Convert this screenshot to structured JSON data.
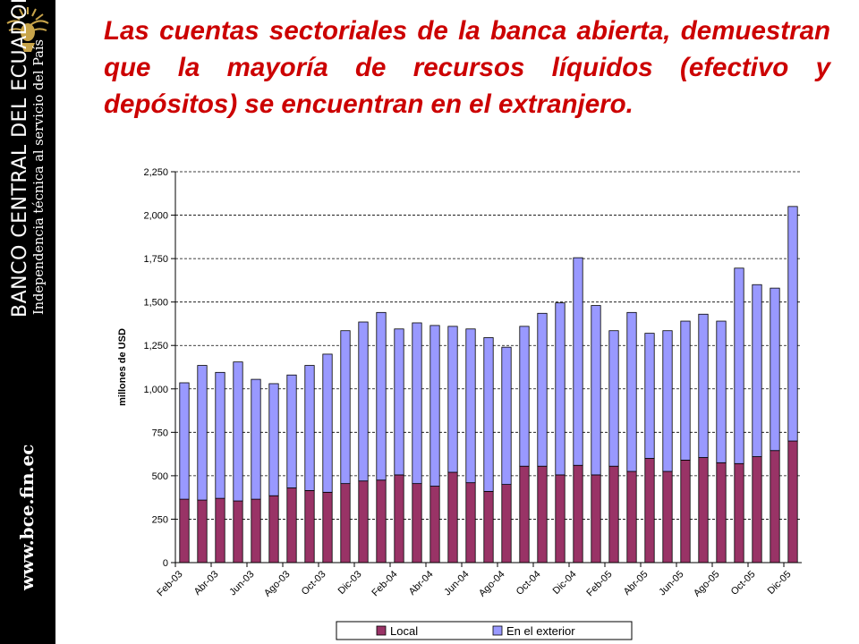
{
  "sidebar": {
    "bank_name": "BANCO CENTRAL DEL ECUADOR",
    "tagline": "Independencia técnica al servicio del País",
    "url": "www.bce.fin.ec",
    "logo_icon": "condor-crest-icon",
    "colors": {
      "background": "#000000",
      "text": "#ffffff",
      "logo": "#c8a44a"
    }
  },
  "headline": "Las cuentas sectoriales de la banca abierta, demuestran que la mayoría de recursos líquidos (efectivo y depósitos) se encuentran en el extranjero.",
  "colors": {
    "headline": "#cc0000",
    "local": "#993366",
    "exterior": "#9999ff",
    "plot_bg": "#ffffff"
  },
  "chart_data": {
    "type": "bar",
    "stacked": true,
    "ylabel": "millones de USD",
    "xlabel": "",
    "ylim": [
      0,
      2250
    ],
    "yticks": [
      0,
      250,
      500,
      750,
      1000,
      1250,
      1500,
      1750,
      2000,
      2250
    ],
    "ytick_labels": [
      "0",
      "250",
      "500",
      "750",
      "1,000",
      "1,250",
      "1,500",
      "1,750",
      "2,000",
      "2,250"
    ],
    "grid": "horizontal dashed",
    "legend_position": "bottom",
    "categories": [
      "Feb-03",
      "Mar-03",
      "Abr-03",
      "May-03",
      "Jun-03",
      "Jul-03",
      "Ago-03",
      "Sep-03",
      "Oct-03",
      "Nov-03",
      "Dic-03",
      "Ene-04",
      "Feb-04",
      "Mar-04",
      "Abr-04",
      "May-04",
      "Jun-04",
      "Jul-04",
      "Ago-04",
      "Sep-04",
      "Oct-04",
      "Nov-04",
      "Dic-04",
      "Ene-05",
      "Feb-05",
      "Mar-05",
      "Abr-05",
      "May-05",
      "Jun-05",
      "Jul-05",
      "Ago-05",
      "Sep-05",
      "Oct-05",
      "Nov-05",
      "Dic-05"
    ],
    "tick_labels": [
      "Feb-03",
      "Abr-03",
      "Jun-03",
      "Ago-03",
      "Oct-03",
      "Dic-03",
      "Feb-04",
      "Abr-04",
      "Jun-04",
      "Ago-04",
      "Oct-04",
      "Dic-04",
      "Feb-05",
      "Abr-05",
      "Jun-05",
      "Ago-05",
      "Oct-05",
      "Dic-05"
    ],
    "series": [
      {
        "name": "Local",
        "values": [
          365,
          360,
          370,
          355,
          365,
          385,
          430,
          415,
          405,
          455,
          470,
          475,
          505,
          455,
          440,
          520,
          460,
          410,
          450,
          555,
          555,
          505,
          560,
          505,
          555,
          525,
          600,
          525,
          590,
          605,
          575,
          570,
          610,
          645,
          700
        ]
      },
      {
        "name": "En el exterior",
        "values": [
          670,
          775,
          725,
          800,
          690,
          645,
          650,
          720,
          795,
          880,
          915,
          965,
          840,
          925,
          925,
          840,
          885,
          885,
          790,
          805,
          880,
          990,
          1195,
          975,
          780,
          915,
          720,
          810,
          800,
          825,
          815,
          1125,
          990,
          935,
          1350
        ]
      }
    ]
  }
}
